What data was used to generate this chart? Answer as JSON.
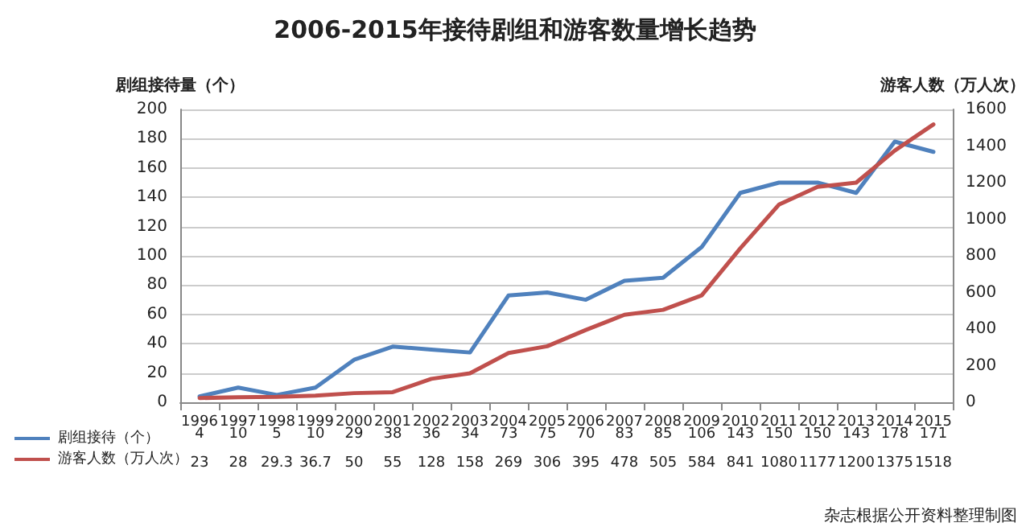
{
  "chart_data": {
    "type": "line",
    "title": "2006-2015年接待剧组和游客数量增长趋势",
    "ylabel": "剧组接待量（个）",
    "y2label": "游客人数（万人次）",
    "categories": [
      "1996",
      "1997",
      "1998",
      "1999",
      "2000",
      "2001",
      "2002",
      "2003",
      "2004",
      "2005",
      "2006",
      "2007",
      "2008",
      "2009",
      "2010",
      "2011",
      "2012",
      "2013",
      "2014",
      "2015"
    ],
    "series": [
      {
        "name": "剧组接待（个）",
        "color": "#4f81bd",
        "values": [
          4,
          10,
          5,
          10,
          29,
          38,
          36,
          34,
          73,
          75,
          70,
          83,
          85,
          106,
          143,
          150,
          150,
          143,
          178,
          171
        ]
      },
      {
        "name": "游客人数（万人次）",
        "color": "#c0504d",
        "axis": "y2",
        "values": [
          23,
          28,
          29.3,
          36.7,
          50,
          55,
          128,
          158,
          269,
          306,
          395,
          478,
          505,
          584,
          841,
          1080,
          1177,
          1200,
          1375,
          1518
        ]
      }
    ],
    "ylim": [
      0,
      200
    ],
    "yticks": [
      0,
      20,
      40,
      60,
      80,
      100,
      120,
      140,
      160,
      180,
      200
    ],
    "y2lim": [
      0,
      1600
    ],
    "y2ticks": [
      0,
      200,
      400,
      600,
      800,
      1000,
      1200,
      1400,
      1600
    ],
    "grid": "y",
    "legend": "bottom left",
    "marker": "none",
    "line_style": "solid",
    "data_labels": true,
    "annotations": [
      "杂志根据公开资料整理制图"
    ]
  }
}
